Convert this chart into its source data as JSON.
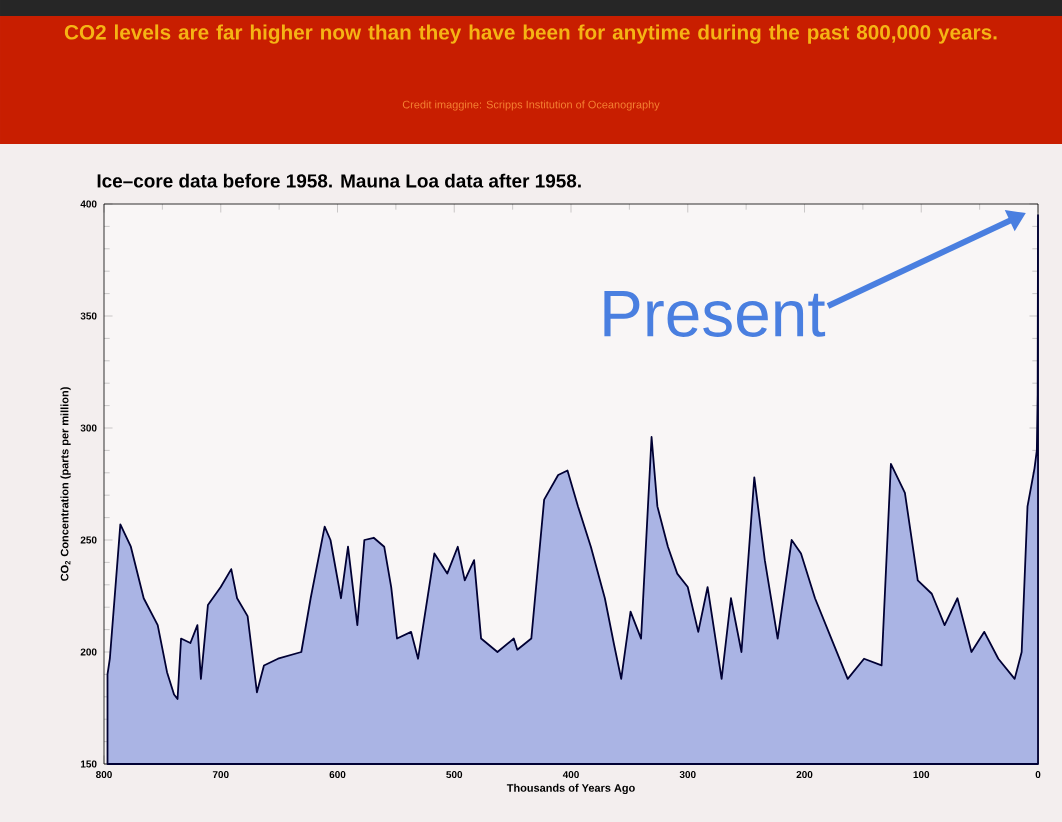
{
  "chart_data": {
    "type": "area",
    "title": "CO2 levels are far higher now than they have been for anytime during the past 800,000 years.",
    "subtitle": "Ice–core data before 1958. Mauna Loa data after 1958.",
    "xlabel": "Thousands of Years Ago",
    "ylabel": "CO$_{2}$ Concentration (parts per million)",
    "annotations": [
      "Credit imaggine: Scripps Institution of Oceanography",
      "Present"
    ],
    "color": "#aab4e4",
    "x": [
      797,
      795,
      786,
      777,
      766,
      754,
      746,
      740,
      737,
      734,
      726,
      720,
      717,
      711,
      700,
      691,
      686,
      677,
      669,
      663,
      651,
      631,
      623,
      611,
      606,
      597,
      591,
      583,
      577,
      569,
      560,
      554,
      549,
      537,
      531,
      517,
      506,
      497,
      491,
      483,
      477,
      463,
      449,
      446,
      434,
      423,
      411,
      403,
      394,
      383,
      371,
      363,
      357,
      349,
      340,
      331,
      326,
      317,
      309,
      300,
      291,
      283,
      271,
      263,
      254,
      243,
      234,
      223,
      211,
      203,
      191,
      177,
      163,
      149,
      134,
      126,
      114,
      103,
      91,
      80,
      69,
      57,
      46,
      34,
      20,
      14,
      9,
      3,
      1,
      0.3,
      0
    ],
    "values": [
      190,
      197,
      257,
      247,
      224,
      212,
      191,
      181,
      179,
      206,
      204,
      212,
      188,
      221,
      229,
      237,
      224,
      216,
      182,
      194,
      197,
      200,
      224,
      256,
      250,
      224,
      247,
      212,
      250,
      251,
      247,
      229,
      206,
      209,
      197,
      244,
      235,
      247,
      232,
      241,
      206,
      200,
      206,
      201,
      206,
      268,
      279,
      281,
      265,
      247,
      224,
      203,
      188,
      218,
      206,
      296,
      265,
      247,
      235,
      229,
      209,
      229,
      188,
      224,
      200,
      278,
      241,
      206,
      250,
      244,
      224,
      206,
      188,
      197,
      194,
      284,
      271,
      232,
      226,
      212,
      224,
      200,
      209,
      197,
      188,
      200,
      265,
      282,
      290,
      315,
      395
    ],
    "xlim": [
      800,
      0
    ],
    "xticks": [
      800,
      700,
      600,
      500,
      400,
      300,
      200,
      100,
      0
    ],
    "ylim": [
      150,
      400
    ],
    "yticks": [
      150,
      200,
      250,
      300,
      350,
      400
    ],
    "grid": false
  }
}
